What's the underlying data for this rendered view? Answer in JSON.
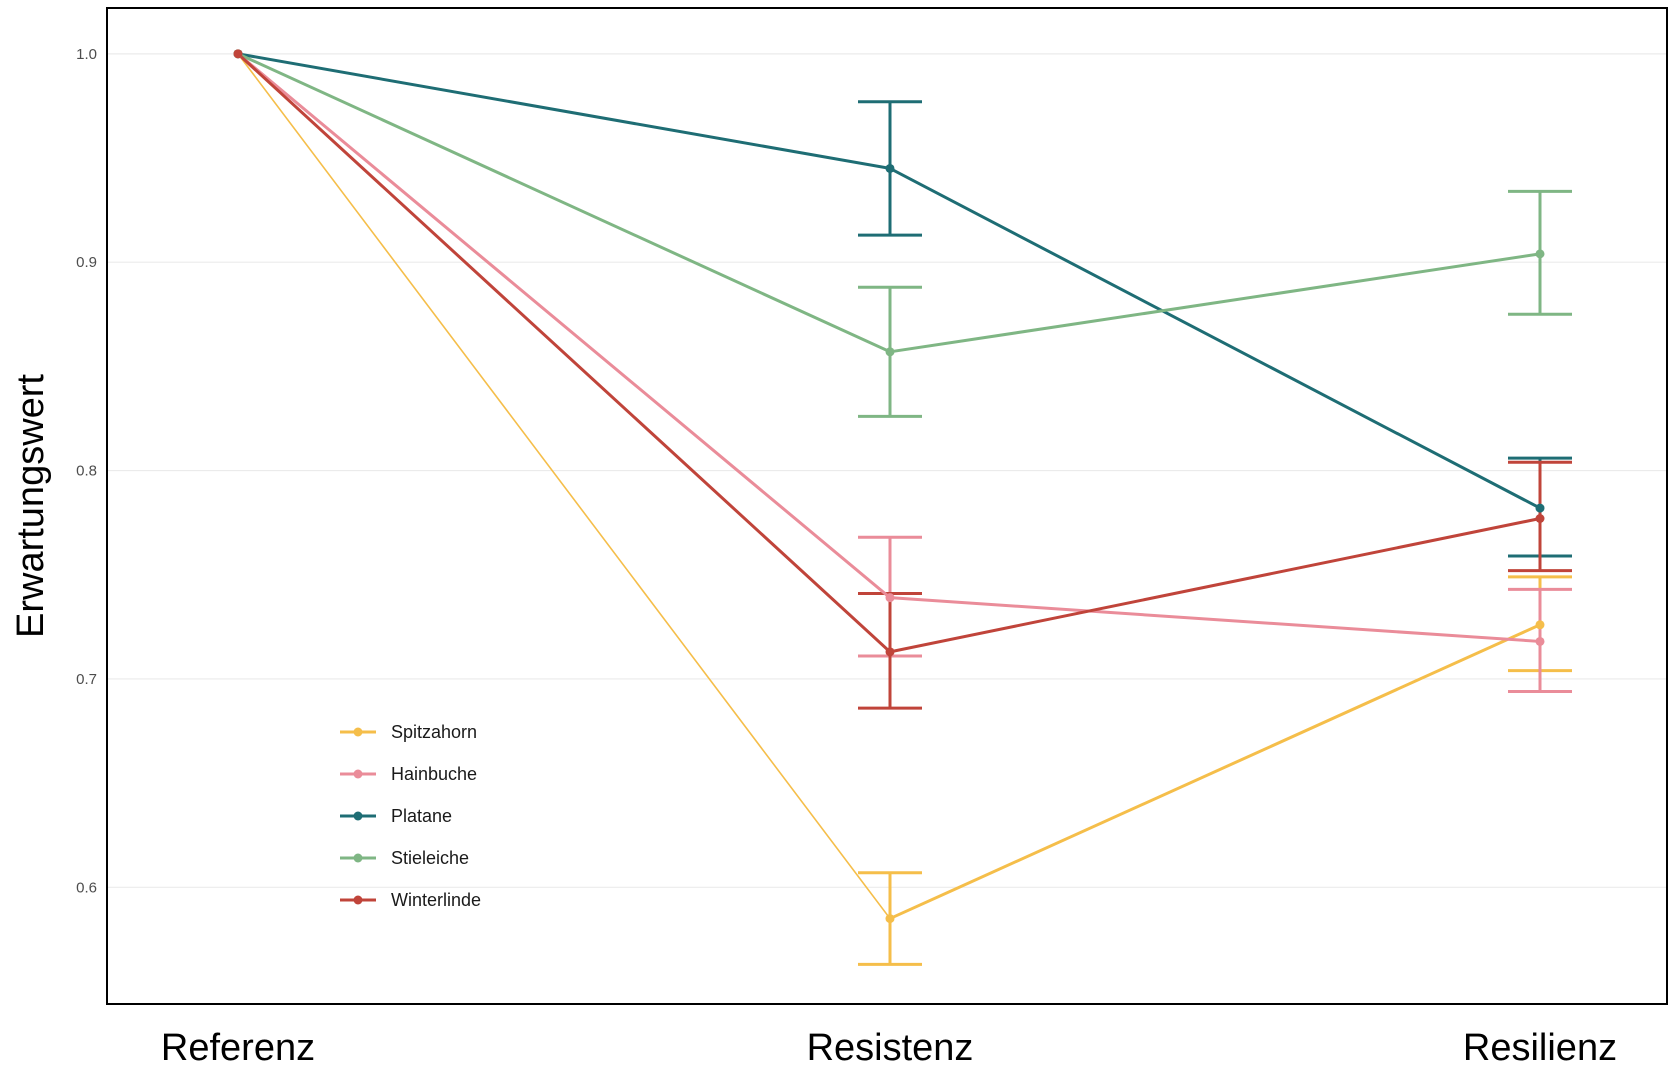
{
  "chart_data": {
    "type": "line",
    "title": "",
    "xlabel": "",
    "ylabel": "Erwartungswert",
    "categories": [
      "Referenz",
      "Resistenz",
      "Resilienz"
    ],
    "ylim": [
      0.544,
      1.022
    ],
    "yticks": [
      0.6,
      0.7,
      0.8,
      0.9,
      1.0
    ],
    "ytick_labels": [
      "0.6",
      "0.7",
      "0.8",
      "0.9",
      "1.0"
    ],
    "grid": "horizontal major",
    "legend_position": "inside bottom-left",
    "series": [
      {
        "name": "Spitzahorn",
        "color": "#F5BE4A",
        "values": [
          1.0,
          0.585,
          0.726
        ],
        "err_low": [
          null,
          0.563,
          0.704
        ],
        "err_high": [
          null,
          0.607,
          0.749
        ]
      },
      {
        "name": "Hainbuche",
        "color": "#EA8C99",
        "values": [
          1.0,
          0.739,
          0.718
        ],
        "err_low": [
          null,
          0.711,
          0.694
        ],
        "err_high": [
          null,
          0.768,
          0.743
        ]
      },
      {
        "name": "Platane",
        "color": "#1E6D74",
        "values": [
          1.0,
          0.945,
          0.782
        ],
        "err_low": [
          null,
          0.913,
          0.759
        ],
        "err_high": [
          null,
          0.977,
          0.806
        ]
      },
      {
        "name": "Stieleiche",
        "color": "#7FB684",
        "values": [
          1.0,
          0.857,
          0.904
        ],
        "err_low": [
          null,
          0.826,
          0.875
        ],
        "err_high": [
          null,
          0.888,
          0.934
        ]
      },
      {
        "name": "Winterlinde",
        "color": "#C0443A",
        "values": [
          1.0,
          0.713,
          0.777
        ],
        "err_low": [
          null,
          0.686,
          0.752
        ],
        "err_high": [
          null,
          0.741,
          0.804
        ]
      }
    ]
  }
}
